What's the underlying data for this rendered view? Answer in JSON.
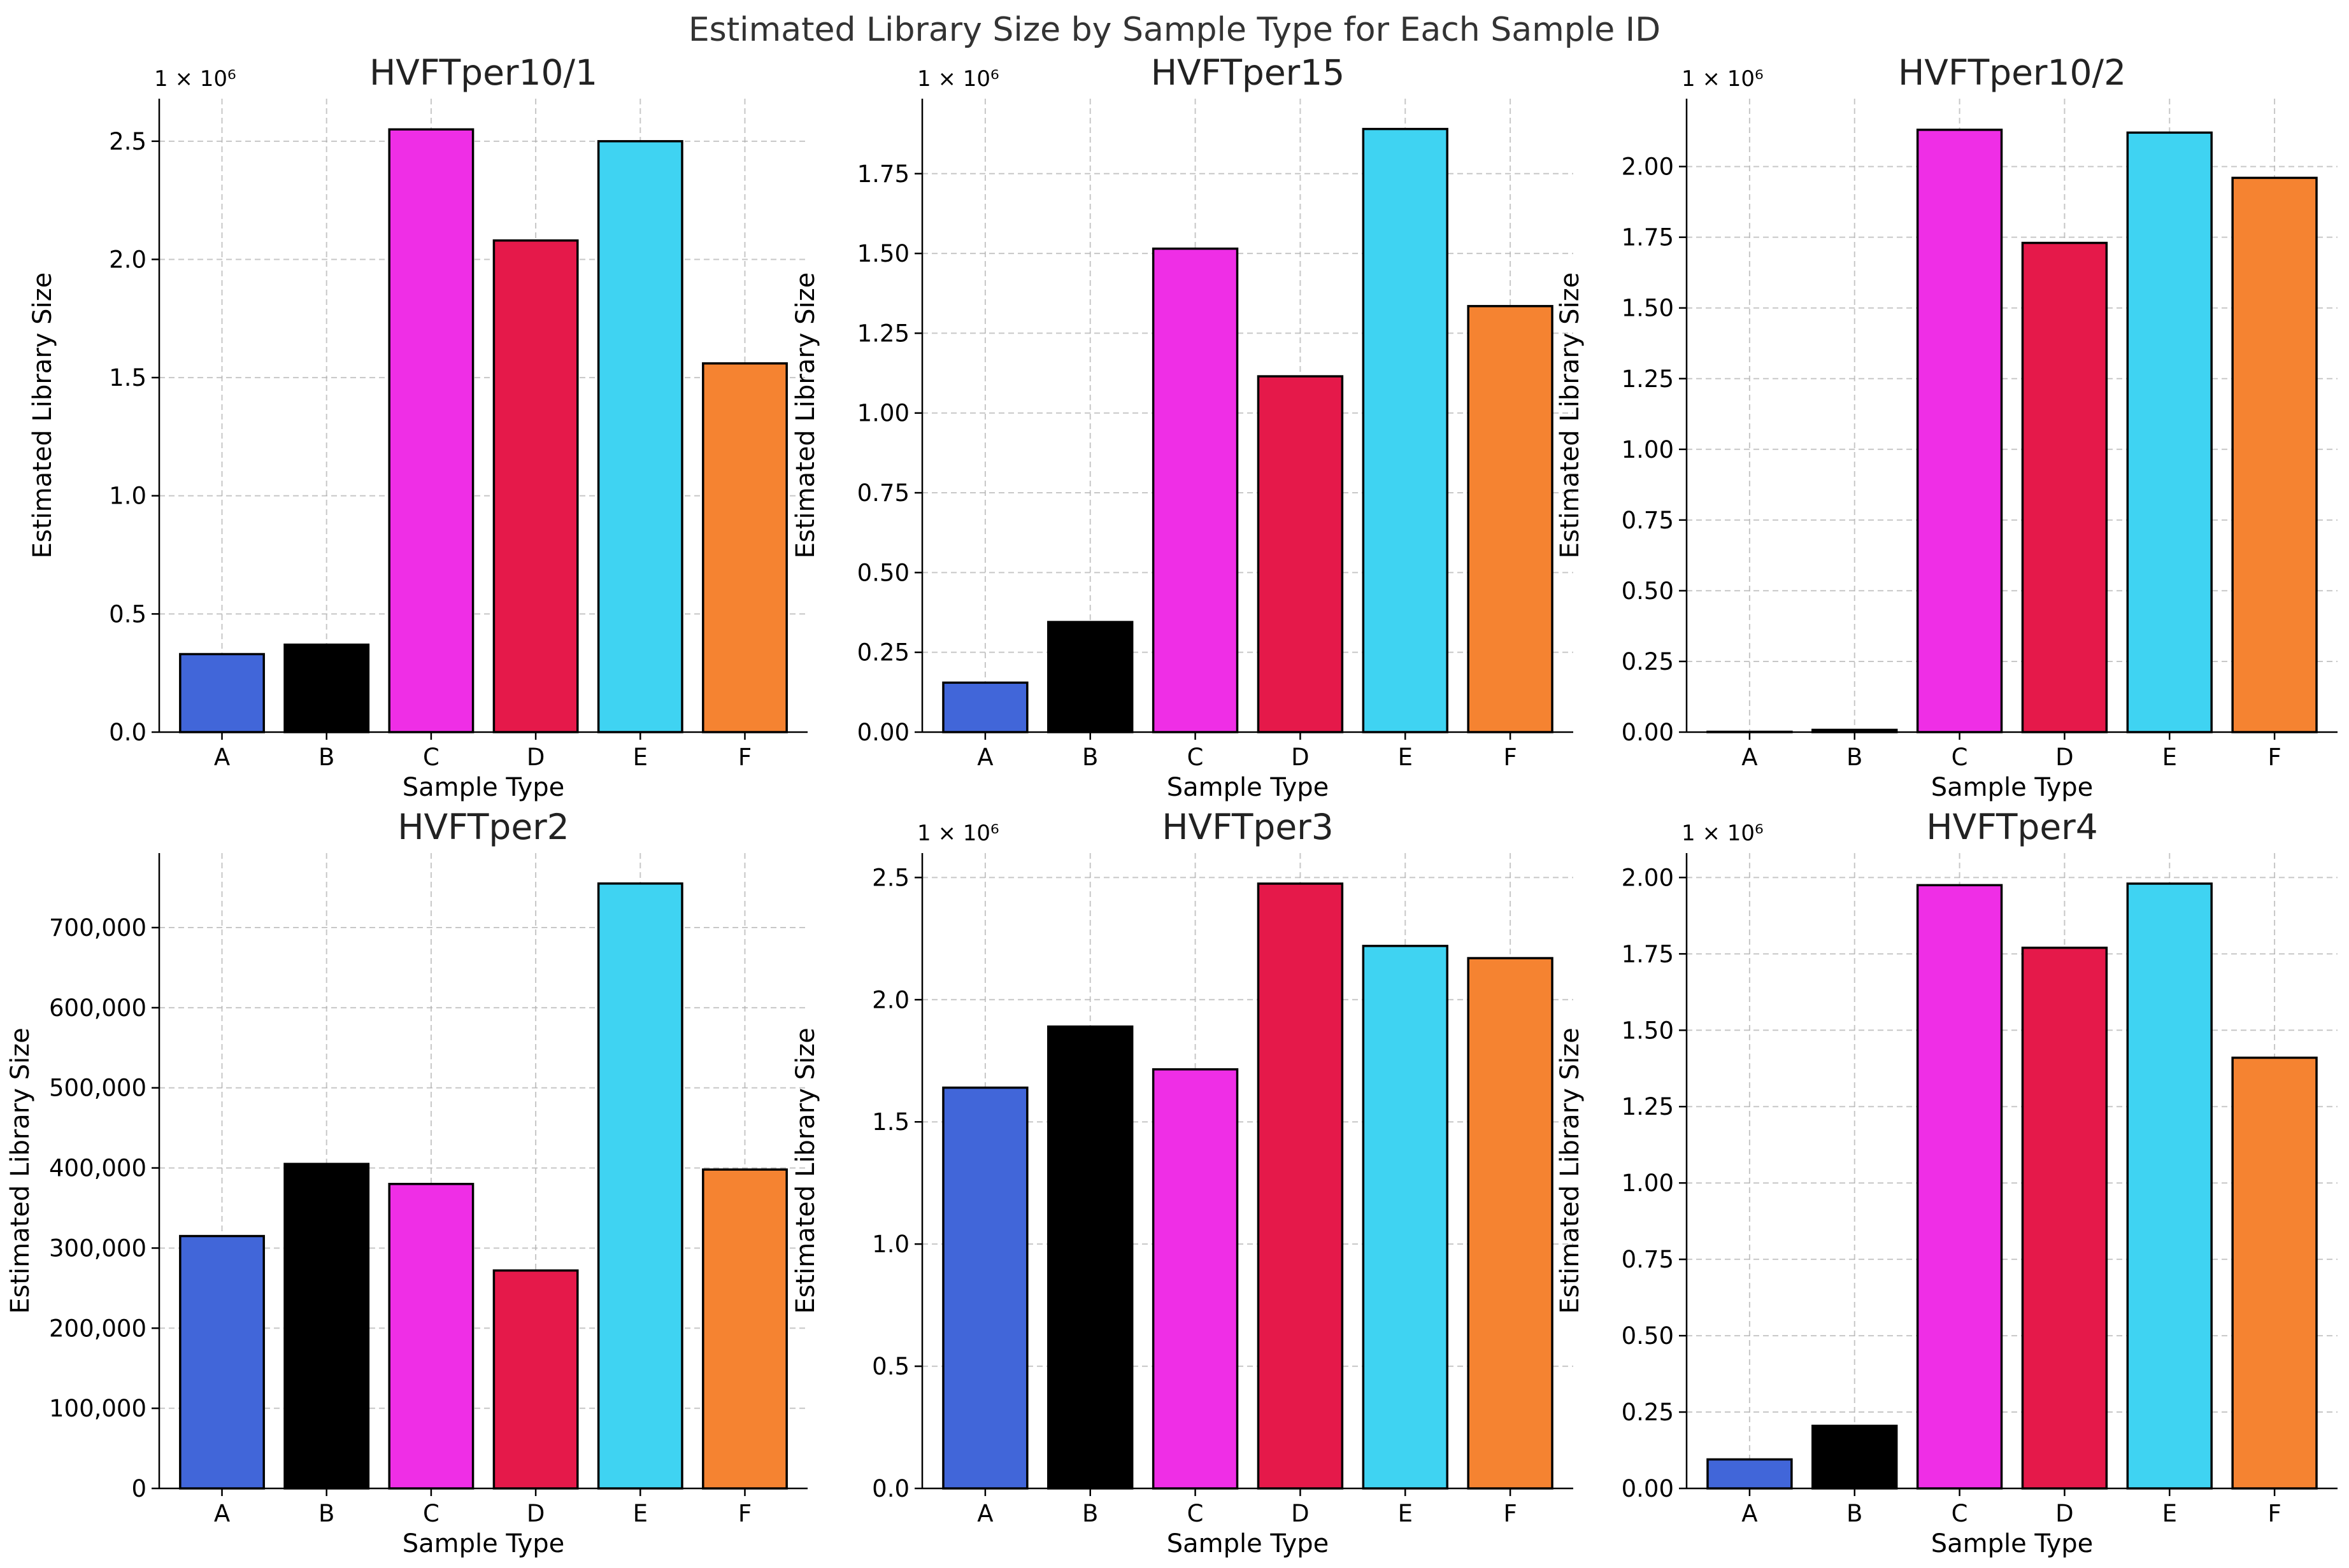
{
  "title": "Estimated Library Size by Sample Type for Each Sample ID",
  "chart_data": [
    {
      "type": "bar",
      "title": "HVFTper10/1",
      "xlabel": "Sample Type",
      "ylabel": "Estimated Library Size",
      "categories": [
        "A",
        "B",
        "C",
        "D",
        "E",
        "F"
      ],
      "values": [
        330000,
        370000,
        2550000,
        2080000,
        2500000,
        1560000
      ],
      "ylim": [
        0,
        2680000
      ],
      "yticks": [
        0,
        500000,
        1000000,
        1500000,
        2000000,
        2500000
      ],
      "ytick_labels": [
        "0.0",
        "0.5",
        "1.0",
        "1.5",
        "2.0",
        "2.5"
      ],
      "offset_text": "1 × 10⁶",
      "grid": true
    },
    {
      "type": "bar",
      "title": "HVFTper15",
      "xlabel": "Sample Type",
      "ylabel": "Estimated Library Size",
      "categories": [
        "A",
        "B",
        "C",
        "D",
        "E",
        "F"
      ],
      "values": [
        155000,
        345000,
        1515000,
        1115000,
        1890000,
        1335000
      ],
      "ylim": [
        0,
        1985000
      ],
      "yticks": [
        0,
        250000,
        500000,
        750000,
        1000000,
        1250000,
        1500000,
        1750000
      ],
      "ytick_labels": [
        "0.00",
        "0.25",
        "0.50",
        "0.75",
        "1.00",
        "1.25",
        "1.50",
        "1.75"
      ],
      "offset_text": "1 × 10⁶",
      "grid": true
    },
    {
      "type": "bar",
      "title": "HVFTper10/2",
      "xlabel": "Sample Type",
      "ylabel": "Estimated Library Size",
      "categories": [
        "A",
        "B",
        "C",
        "D",
        "E",
        "F"
      ],
      "values": [
        0,
        8000,
        2130000,
        1730000,
        2120000,
        1960000
      ],
      "ylim": [
        0,
        2240000
      ],
      "yticks": [
        0,
        250000,
        500000,
        750000,
        1000000,
        1250000,
        1500000,
        1750000,
        2000000
      ],
      "ytick_labels": [
        "0.00",
        "0.25",
        "0.50",
        "0.75",
        "1.00",
        "1.25",
        "1.50",
        "1.75",
        "2.00"
      ],
      "offset_text": "1 × 10⁶",
      "grid": true
    },
    {
      "type": "bar",
      "title": "HVFTper2",
      "xlabel": "Sample Type",
      "ylabel": "Estimated Library Size",
      "categories": [
        "A",
        "B",
        "C",
        "D",
        "E",
        "F"
      ],
      "values": [
        315000,
        405000,
        380000,
        272000,
        755000,
        398000
      ],
      "ylim": [
        0,
        793000
      ],
      "yticks": [
        0,
        100000,
        200000,
        300000,
        400000,
        500000,
        600000,
        700000
      ],
      "ytick_labels": [
        "0",
        "100,000",
        "200,000",
        "300,000",
        "400,000",
        "500,000",
        "600,000",
        "700,000"
      ],
      "offset_text": "",
      "grid": true
    },
    {
      "type": "bar",
      "title": "HVFTper3",
      "xlabel": "Sample Type",
      "ylabel": "Estimated Library Size",
      "categories": [
        "A",
        "B",
        "C",
        "D",
        "E",
        "F"
      ],
      "values": [
        1640000,
        1890000,
        1715000,
        2475000,
        2220000,
        2170000
      ],
      "ylim": [
        0,
        2600000
      ],
      "yticks": [
        0,
        500000,
        1000000,
        1500000,
        2000000,
        2500000
      ],
      "ytick_labels": [
        "0.0",
        "0.5",
        "1.0",
        "1.5",
        "2.0",
        "2.5"
      ],
      "offset_text": "1 × 10⁶",
      "grid": true
    },
    {
      "type": "bar",
      "title": "HVFTper4",
      "xlabel": "Sample Type",
      "ylabel": "Estimated Library Size",
      "categories": [
        "A",
        "B",
        "C",
        "D",
        "E",
        "F"
      ],
      "values": [
        95000,
        205000,
        1975000,
        1770000,
        1980000,
        1410000
      ],
      "ylim": [
        0,
        2080000
      ],
      "yticks": [
        0,
        250000,
        500000,
        750000,
        1000000,
        1250000,
        1500000,
        1750000,
        2000000
      ],
      "ytick_labels": [
        "0.00",
        "0.25",
        "0.50",
        "0.75",
        "1.00",
        "1.25",
        "1.50",
        "1.75",
        "2.00"
      ],
      "offset_text": "1 × 10⁶",
      "grid": true
    }
  ],
  "colors": [
    "#4166d9",
    "#000000",
    "#ef2ee6",
    "#e5194a",
    "#3fd3f2",
    "#f58331"
  ]
}
